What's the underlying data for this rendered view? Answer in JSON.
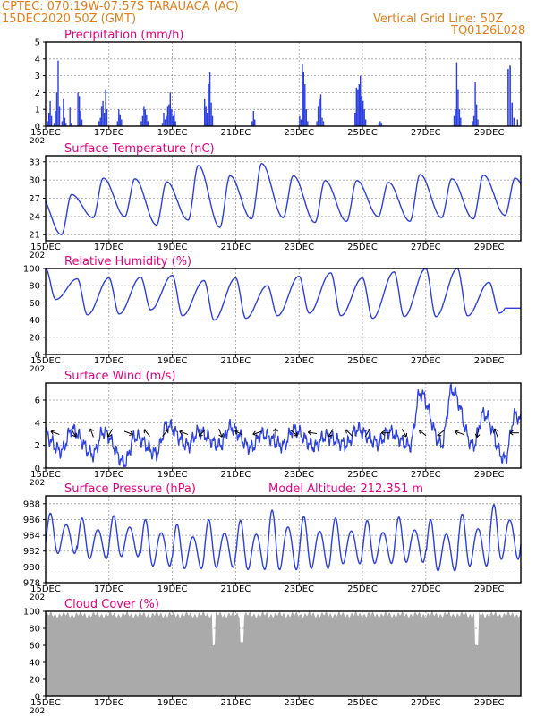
{
  "header": {
    "left_line1": "CPTEC:   070:19W-07:57S   TARAUACA (AC)",
    "left_line2": "15DEC2020 50Z (GMT)",
    "right_line1": "Vertical Grid Line: 50Z",
    "right_line2": "TQ0126L028"
  },
  "colors": {
    "header": "#e07f1a",
    "title": "#e6007e",
    "series": "#2c3fe0",
    "cloud": "#aaaaaa"
  },
  "x_axis": {
    "day_labels": [
      "15DEC",
      "17DEC",
      "19DEC",
      "21DEC",
      "23DEC",
      "25DEC",
      "27DEC",
      "29DEC"
    ],
    "clipped_year_label": "202",
    "days_span": 15
  },
  "chart_data": [
    {
      "type": "bar",
      "title": "Precipitation (mm/h)",
      "ylim": [
        0,
        5
      ],
      "yticks": [
        "0",
        "1",
        "2",
        "3",
        "4",
        "5"
      ],
      "values_hourly_by_day": [
        [
          0,
          0.3,
          0.8,
          1.5,
          0.6,
          0,
          0.2,
          0.9,
          2.0,
          3.9,
          1.2,
          0,
          0.3,
          1.6,
          0.5,
          0.2,
          0,
          0,
          1.1,
          0.2,
          0,
          0,
          0,
          0
        ],
        [
          2.0,
          1.8,
          0.9,
          0.4,
          0,
          0,
          0,
          0,
          0,
          0,
          0,
          0,
          0,
          0,
          0,
          0,
          0.3,
          0.5,
          1.2,
          1.5,
          0.8,
          2.2,
          1.0,
          0
        ],
        [
          0,
          0,
          0,
          0,
          0,
          0,
          0.3,
          1.0,
          0.7,
          0.4,
          0,
          0,
          0,
          0,
          0,
          0,
          0,
          0,
          0,
          0,
          0,
          0,
          0,
          0
        ],
        [
          0.3,
          0.6,
          1.2,
          1.0,
          0.7,
          0.3,
          0,
          0,
          0,
          0,
          0,
          0,
          0,
          0,
          0,
          0,
          0.2,
          0.8,
          0.4,
          0.6,
          1.2,
          1.3,
          2.0,
          1.0
        ],
        [
          0.6,
          0.9,
          0.3,
          0,
          0,
          0,
          0,
          0,
          0,
          0,
          0,
          0,
          0,
          0,
          0,
          0,
          0,
          0,
          0,
          0,
          0,
          0,
          0,
          0
        ],
        [
          1.6,
          1.2,
          0.8,
          2.5,
          3.2,
          1.4,
          0.6,
          0,
          0,
          0,
          0,
          0,
          0,
          0,
          0,
          0,
          0,
          0,
          0,
          0,
          0,
          0,
          0,
          0
        ],
        [
          0,
          0,
          0,
          0,
          0,
          0,
          0,
          0,
          0,
          0,
          0,
          0,
          0.3,
          0.9,
          0.4,
          0,
          0,
          0,
          0,
          0,
          0,
          0,
          0,
          0
        ],
        [
          0,
          0,
          0,
          0,
          0,
          0,
          0,
          0,
          0,
          0,
          0,
          0,
          0,
          0,
          0,
          0,
          0,
          0,
          0,
          0,
          0,
          0,
          0,
          0
        ],
        [
          0.6,
          0.4,
          3.7,
          3.2,
          2.5,
          1.0,
          0.3,
          0,
          0,
          0,
          0,
          0,
          0,
          0.3,
          1.2,
          1.6,
          1.9,
          0.5,
          0.3,
          0,
          0,
          0,
          0,
          0
        ],
        [
          0,
          0,
          0,
          0,
          0,
          0,
          0,
          0,
          0,
          0,
          0,
          0,
          0,
          0,
          0,
          0,
          0,
          0,
          0.8,
          2.3,
          2.2,
          2.5,
          3.0,
          1.8
        ],
        [
          1.5,
          1.0,
          0.4,
          0,
          0,
          0,
          0,
          0,
          0,
          0,
          0,
          0,
          0.2,
          0.3,
          0.2,
          0,
          0,
          0,
          0,
          0,
          0,
          0,
          0,
          0
        ],
        [
          0,
          0,
          0,
          0,
          0,
          0,
          0,
          0,
          0,
          0,
          0,
          0,
          0,
          0,
          0,
          0,
          0,
          0,
          0,
          0,
          0,
          0,
          0,
          0
        ],
        [
          0,
          0,
          0,
          0,
          0,
          0,
          0,
          0,
          0,
          0,
          0,
          0,
          0,
          0,
          0,
          0,
          0,
          0,
          0,
          0,
          0,
          0.6,
          1.0,
          3.8
        ],
        [
          2.2,
          1.0,
          0.5,
          0,
          0,
          0,
          0,
          0,
          0,
          0,
          0,
          0.3,
          0.6,
          2.6,
          1.3,
          0.4,
          0,
          0,
          0,
          0,
          0,
          0,
          0,
          0
        ],
        [
          0,
          0,
          0,
          0,
          0,
          0,
          0,
          0,
          0,
          0,
          0,
          0,
          0,
          0,
          0,
          0,
          0,
          0,
          0,
          0,
          0,
          0.4,
          0,
          0
        ]
      ],
      "tail_values": [
        3.4,
        3.6,
        1.4,
        0.5
      ]
    },
    {
      "type": "line",
      "title": "Surface Temperature (nC)",
      "ylim": [
        20,
        34
      ],
      "yticks": [
        "21",
        "24",
        "27",
        "30",
        "33"
      ],
      "daily_min": [
        21.0,
        23.8,
        24.0,
        22.6,
        23.4,
        22.2,
        23.6,
        23.8,
        23.0,
        23.2,
        24.0,
        23.2,
        23.8,
        23.6,
        24.2
      ],
      "daily_max": [
        27.6,
        30.3,
        30.2,
        29.7,
        32.4,
        30.7,
        32.7,
        30.7,
        29.9,
        29.9,
        29.6,
        30.9,
        30.2,
        30.8,
        30.3
      ]
    },
    {
      "type": "line",
      "title": "Relative Humidity (%)",
      "ylim": [
        0,
        100
      ],
      "yticks": [
        "0",
        "20",
        "40",
        "60",
        "80",
        "100"
      ],
      "daily_max": [
        100,
        88,
        89,
        90,
        92,
        86,
        89,
        80,
        91,
        95,
        89,
        96,
        100,
        100,
        84
      ],
      "daily_min": [
        64,
        46,
        47,
        52,
        45,
        40,
        42,
        45,
        48,
        45,
        42,
        44,
        44,
        45,
        48
      ]
    },
    {
      "type": "line",
      "title": "Surface Wind (m/s)",
      "ylim": [
        0,
        7.5
      ],
      "yticks": [
        "0",
        "2",
        "4",
        "6"
      ],
      "daily_max": [
        3.4,
        3.2,
        2.8,
        3.8,
        3.2,
        3.6,
        3.0,
        3.4,
        2.8,
        3.4,
        3.2,
        6.6,
        6.9,
        4.8,
        4.7
      ],
      "daily_min": [
        1.5,
        1.2,
        0.5,
        1.3,
        2.0,
        2.0,
        1.8,
        2.0,
        1.9,
        2.1,
        2.2,
        2.0,
        2.1,
        2.0,
        0.8
      ],
      "arrow_directions_deg": [
        200,
        60,
        250,
        120,
        20,
        230,
        310,
        200,
        135,
        70,
        210,
        160,
        270,
        40,
        190,
        120,
        225,
        300,
        180,
        60,
        220,
        140,
        200,
        100,
        250,
        180
      ]
    },
    {
      "type": "line",
      "title": "Surface Pressure (hPa)",
      "annotation": "Model Altitude: 212.351  m",
      "ylim": [
        978,
        989
      ],
      "yticks": [
        "978",
        "980",
        "982",
        "984",
        "986",
        "988"
      ],
      "semidiurnal_max": [
        986.8,
        986.2,
        986.5,
        986.0,
        985.4,
        986.0,
        985.9,
        987.2,
        986.4,
        986.2,
        985.9,
        986.3,
        986.0,
        986.7,
        987.9
      ],
      "semidiurnal_min": [
        981.0,
        980.3,
        980.6,
        979.3,
        979.0,
        979.1,
        978.8,
        978.6,
        978.9,
        979.6,
        979.7,
        979.8,
        978.6,
        979.2,
        980.0
      ]
    },
    {
      "type": "area",
      "title": "Cloud Cover (%)",
      "ylim": [
        0,
        100
      ],
      "yticks": [
        "0",
        "20",
        "40",
        "60",
        "80",
        "100"
      ],
      "typical_cover": 96,
      "dips": [
        {
          "day": 5.3,
          "value": 60
        },
        {
          "day": 6.2,
          "value": 64
        },
        {
          "day": 13.6,
          "value": 60
        }
      ]
    }
  ]
}
